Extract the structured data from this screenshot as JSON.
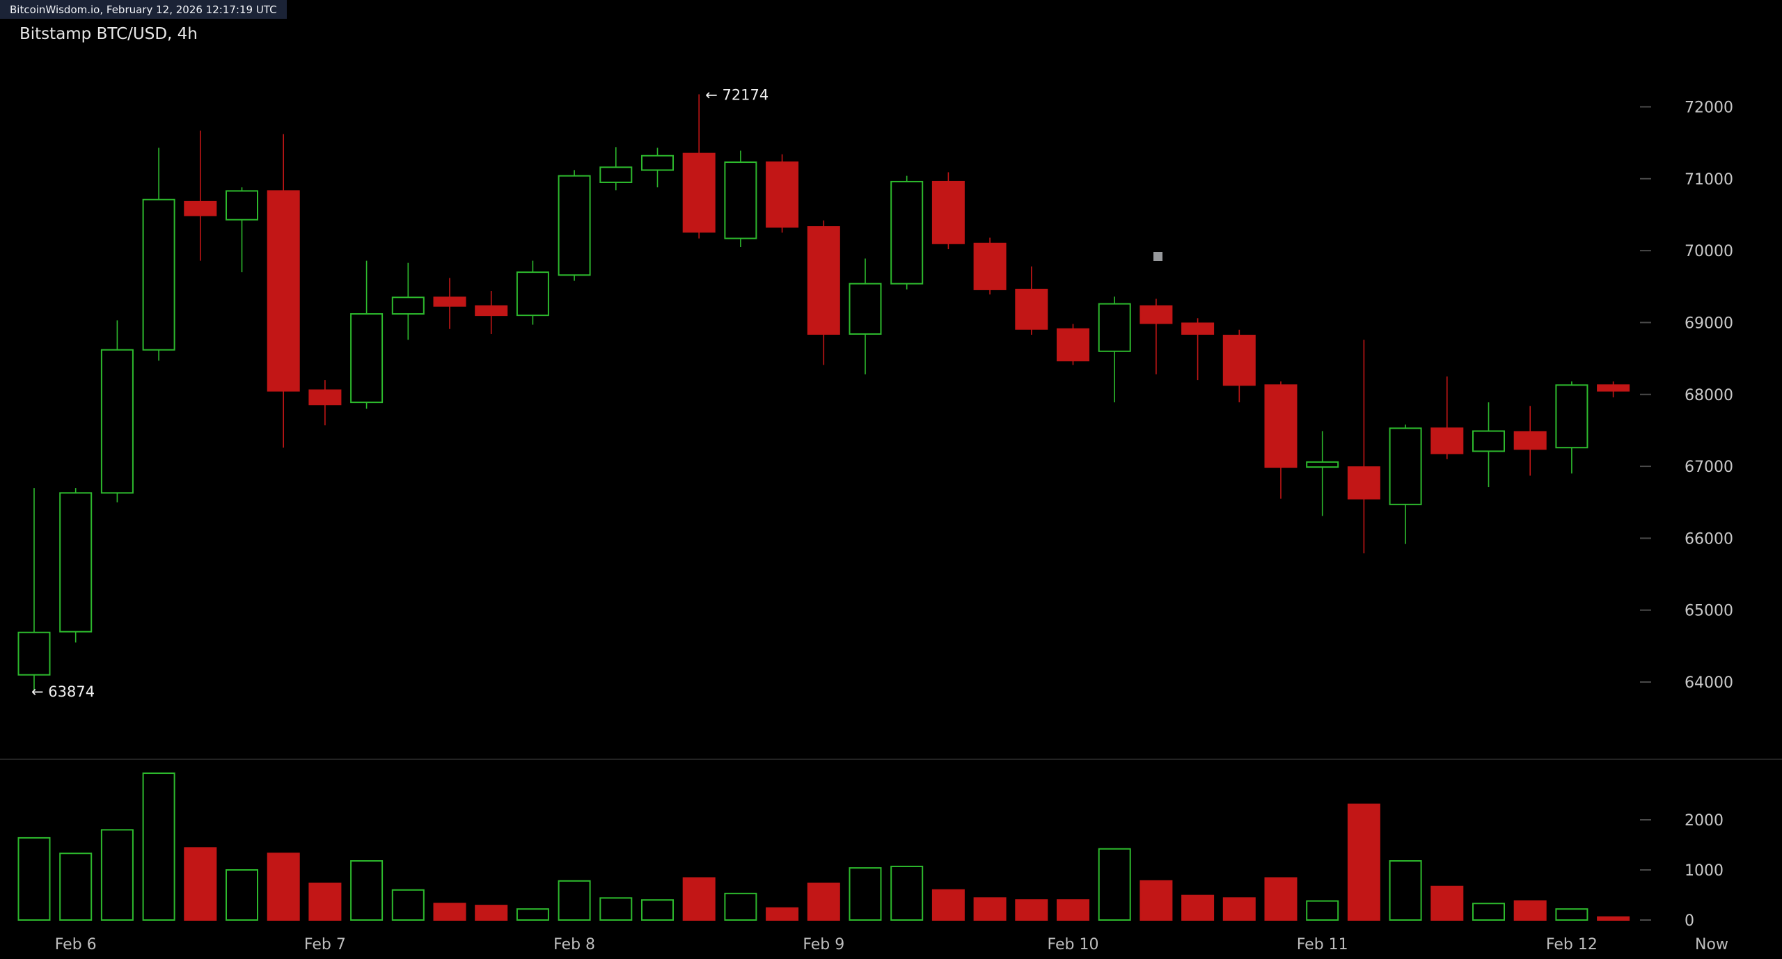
{
  "topbar": {
    "text": "BitcoinWisdom.io, February 12, 2026 12:17:19 UTC"
  },
  "header": {
    "title": "Bitstamp BTC/USD, 4h"
  },
  "chart_data": {
    "type": "candlestick",
    "title": "Bitstamp BTC/USD, 4h",
    "exchange_pair": "Bitstamp BTC/USD",
    "interval": "4h",
    "price_axis": {
      "ticks": [
        72000,
        71000,
        70000,
        69000,
        68000,
        67000,
        66000,
        65000,
        64000
      ],
      "min": 63500,
      "max": 72400
    },
    "volume_axis": {
      "ticks": [
        2000,
        1000,
        0
      ],
      "min": 0,
      "max": 3000
    },
    "x_axis": {
      "day_labels": [
        {
          "text": "Feb 6",
          "candle_index": 1
        },
        {
          "text": "Feb 7",
          "candle_index": 7
        },
        {
          "text": "Feb 8",
          "candle_index": 13
        },
        {
          "text": "Feb 9",
          "candle_index": 19
        },
        {
          "text": "Feb 10",
          "candle_index": 25
        },
        {
          "text": "Feb 11",
          "candle_index": 31
        },
        {
          "text": "Feb 12",
          "candle_index": 37
        }
      ],
      "now_label": "Now"
    },
    "annotations": {
      "high": {
        "text": "← 72174",
        "value": 72174,
        "candle_index": 16
      },
      "low": {
        "text": "← 63874",
        "value": 63874,
        "candle_index": 0
      }
    },
    "colors": {
      "up": "#2db92d",
      "down": "#c21616",
      "background": "#000000",
      "axis_text": "#c9c9c9",
      "annotation_text": "#efefef"
    },
    "columns": [
      "open",
      "high",
      "low",
      "close",
      "volume"
    ],
    "candles": [
      [
        64100,
        66700,
        63874,
        64690,
        1640
      ],
      [
        64700,
        66700,
        64550,
        66630,
        1330
      ],
      [
        66630,
        69030,
        66500,
        68620,
        1800
      ],
      [
        68620,
        71430,
        68470,
        70710,
        2930
      ],
      [
        70680,
        71670,
        69860,
        70490,
        1440
      ],
      [
        70430,
        70880,
        69700,
        70830,
        1000
      ],
      [
        70830,
        71620,
        67260,
        68050,
        1330
      ],
      [
        68060,
        68200,
        67570,
        67860,
        730
      ],
      [
        67890,
        69860,
        67800,
        69120,
        1180
      ],
      [
        69120,
        69830,
        68760,
        69350,
        600
      ],
      [
        69350,
        69620,
        68910,
        69230,
        330
      ],
      [
        69230,
        69440,
        68840,
        69100,
        290
      ],
      [
        69100,
        69860,
        68970,
        69700,
        220
      ],
      [
        69660,
        71120,
        69580,
        71040,
        780
      ],
      [
        70950,
        71440,
        70840,
        71160,
        440
      ],
      [
        71120,
        71430,
        70880,
        71320,
        400
      ],
      [
        71350,
        72174,
        70170,
        70260,
        840
      ],
      [
        70170,
        71390,
        70050,
        71230,
        530
      ],
      [
        71230,
        71340,
        70250,
        70330,
        240
      ],
      [
        70330,
        70420,
        68410,
        68840,
        730
      ],
      [
        68840,
        69890,
        68280,
        69540,
        1040
      ],
      [
        69540,
        71040,
        69460,
        70960,
        1070
      ],
      [
        70960,
        71090,
        70020,
        70100,
        600
      ],
      [
        70100,
        70180,
        69390,
        69460,
        440
      ],
      [
        69460,
        69780,
        68830,
        68910,
        400
      ],
      [
        68910,
        68980,
        68410,
        68470,
        400
      ],
      [
        68600,
        69360,
        67890,
        69260,
        1420
      ],
      [
        69230,
        69330,
        68280,
        68990,
        780
      ],
      [
        68990,
        69060,
        68200,
        68840,
        490
      ],
      [
        68820,
        68900,
        67890,
        68130,
        440
      ],
      [
        68130,
        68180,
        66550,
        66990,
        840
      ],
      [
        66990,
        67490,
        66310,
        67060,
        380
      ],
      [
        66990,
        68760,
        65790,
        66550,
        2310
      ],
      [
        66470,
        67580,
        65920,
        67530,
        1180
      ],
      [
        67530,
        68250,
        67100,
        67180,
        670
      ],
      [
        67210,
        67890,
        66710,
        67490,
        330
      ],
      [
        67480,
        67840,
        66870,
        67240,
        380
      ],
      [
        67260,
        68180,
        66900,
        68130,
        220
      ],
      [
        68130,
        68180,
        67960,
        68050,
        60
      ]
    ]
  }
}
